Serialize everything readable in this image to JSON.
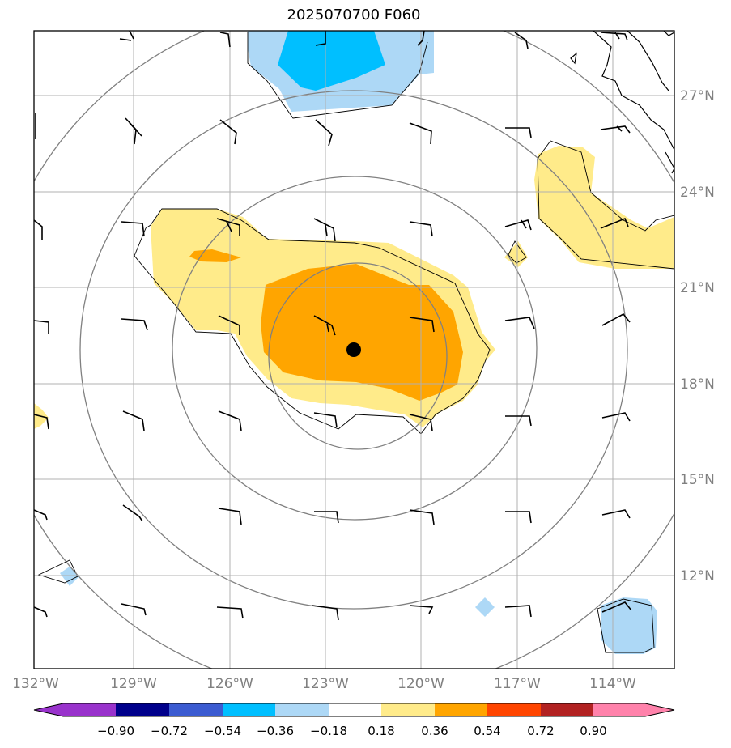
{
  "title": "2025070700 F060",
  "map": {
    "lon_min": -132.0,
    "lon_max": -112.0,
    "lat_min": 9.0,
    "lat_max": 29.0,
    "lat_ticks": [
      {
        "value": 12,
        "label": "12°N"
      },
      {
        "value": 15,
        "label": "15°N"
      },
      {
        "value": 18,
        "label": "18°N"
      },
      {
        "value": 21,
        "label": "21°N"
      },
      {
        "value": 24,
        "label": "24°N"
      },
      {
        "value": 27,
        "label": "27°N"
      }
    ],
    "lon_ticks": [
      {
        "value": -132,
        "label": "132°W"
      },
      {
        "value": -129,
        "label": "129°W"
      },
      {
        "value": -126,
        "label": "126°W"
      },
      {
        "value": -123,
        "label": "123°W"
      },
      {
        "value": -120,
        "label": "120°W"
      },
      {
        "value": -117,
        "label": "117°W"
      },
      {
        "value": -114,
        "label": "114°W"
      }
    ],
    "center_marker": {
      "lon": -122.1,
      "lat": 19.0
    },
    "colors": {
      "neg_090": "#9932cc",
      "neg_072": "#00008b",
      "neg_054": "#3b5bd1",
      "neg_036": "#00bfff",
      "neg_018": "#add8f6",
      "neutral": "#ffffff",
      "pos_018": "#ffeb8a",
      "pos_036": "#ffa500",
      "pos_054": "#ff4500",
      "pos_072": "#b22222",
      "pos_090": "#ff82ab"
    }
  },
  "colorbar": {
    "labels": [
      "−0.90",
      "−0.72",
      "−0.54",
      "−0.36",
      "−0.18",
      "0.18",
      "0.36",
      "0.54",
      "0.72",
      "0.90"
    ],
    "colors": [
      "#9932cc",
      "#00008b",
      "#3b5bd1",
      "#00bfff",
      "#add8f6",
      "#ffffff",
      "#ffeb8a",
      "#ffa500",
      "#ff4500",
      "#b22222",
      "#ff82ab"
    ]
  }
}
